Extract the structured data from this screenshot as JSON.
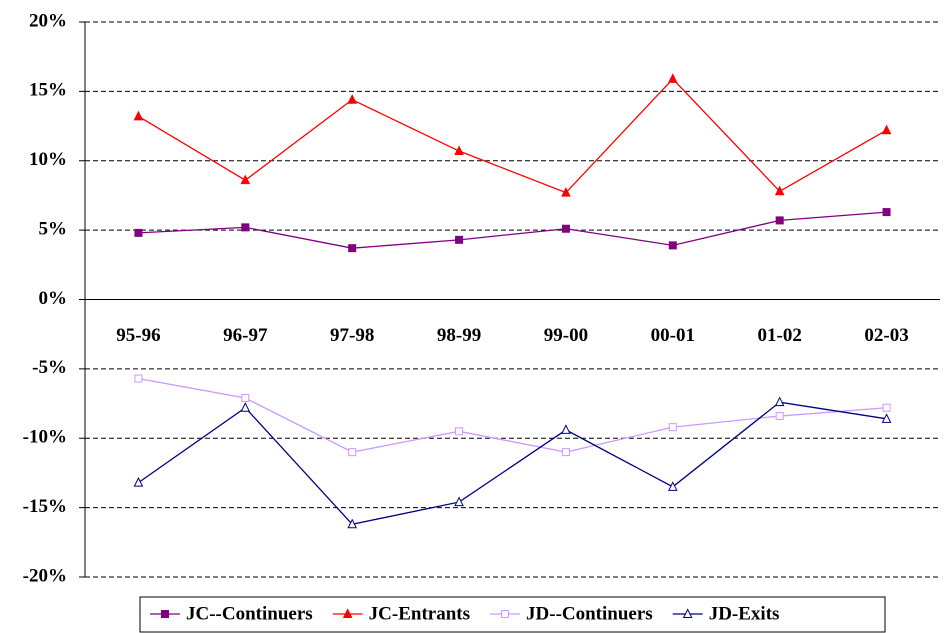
{
  "chart_data": {
    "type": "line",
    "categories": [
      "95-96",
      "96-97",
      "97-98",
      "98-99",
      "99-00",
      "00-01",
      "01-02",
      "02-03"
    ],
    "series": [
      {
        "name": "JC--Continuers",
        "color": "#800080",
        "marker": "square",
        "filled": true,
        "values": [
          4.8,
          5.2,
          3.7,
          4.3,
          5.1,
          3.9,
          5.7,
          6.3
        ]
      },
      {
        "name": "JC-Entrants",
        "color": "#ff0000",
        "marker": "triangle",
        "filled": true,
        "values": [
          13.2,
          8.6,
          14.4,
          10.7,
          7.7,
          15.9,
          7.8,
          12.2
        ]
      },
      {
        "name": "JD--Continuers",
        "color": "#cc99ff",
        "marker": "square",
        "filled": false,
        "values": [
          -5.7,
          -7.1,
          -11.0,
          -9.5,
          -11.0,
          -9.2,
          -8.4,
          -7.8
        ]
      },
      {
        "name": "JD-Exits",
        "color": "#000080",
        "marker": "triangle",
        "filled": false,
        "values": [
          -13.2,
          -7.8,
          -16.2,
          -14.6,
          -9.4,
          -13.5,
          -7.4,
          -8.6
        ]
      }
    ],
    "ylim": [
      -20,
      20
    ],
    "yticks": [
      {
        "value": -20,
        "label": "-20%"
      },
      {
        "value": -15,
        "label": "-15%"
      },
      {
        "value": -10,
        "label": "-10%"
      },
      {
        "value": -5,
        "label": "-5%"
      },
      {
        "value": 0,
        "label": "0%"
      },
      {
        "value": 5,
        "label": "5%"
      },
      {
        "value": 10,
        "label": "10%"
      },
      {
        "value": 15,
        "label": "15%"
      },
      {
        "value": 20,
        "label": "20%"
      }
    ],
    "grid": true,
    "legend": "bottom"
  }
}
